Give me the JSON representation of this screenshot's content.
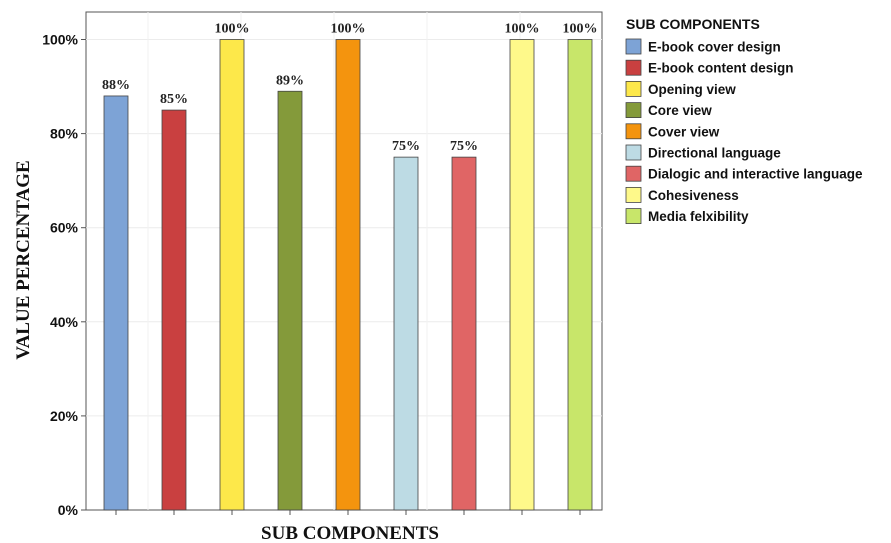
{
  "chart_data": {
    "type": "bar",
    "categories": [
      "E-book cover design",
      "E-book content design",
      "Opening view",
      "Core view",
      "Cover view",
      "Directional language",
      "Dialogic and interactive language",
      "Cohesiveness",
      "Media felxibility"
    ],
    "values": [
      88,
      85,
      100,
      89,
      100,
      75,
      75,
      100,
      100
    ],
    "data_labels": [
      "88%",
      "85%",
      "100%",
      "89%",
      "100%",
      "75%",
      "75%",
      "100%",
      "100%"
    ],
    "colors": [
      "#7da3d6",
      "#c94040",
      "#fde84a",
      "#849a3a",
      "#f4940e",
      "#bddbe4",
      "#e06565",
      "#fef98a",
      "#c8e66a"
    ],
    "xlabel": "SUB COMPONENTS",
    "ylabel": "VALUE PERCENTAGE",
    "ylim": [
      0,
      100
    ],
    "y_ticks": [
      0,
      20,
      40,
      60,
      80,
      100
    ],
    "y_tick_labels": [
      "0%",
      "20%",
      "40%",
      "60%",
      "80%",
      "100%"
    ],
    "legend_title": "SUB COMPONENTS",
    "legend_position": "right",
    "grid": true
  }
}
